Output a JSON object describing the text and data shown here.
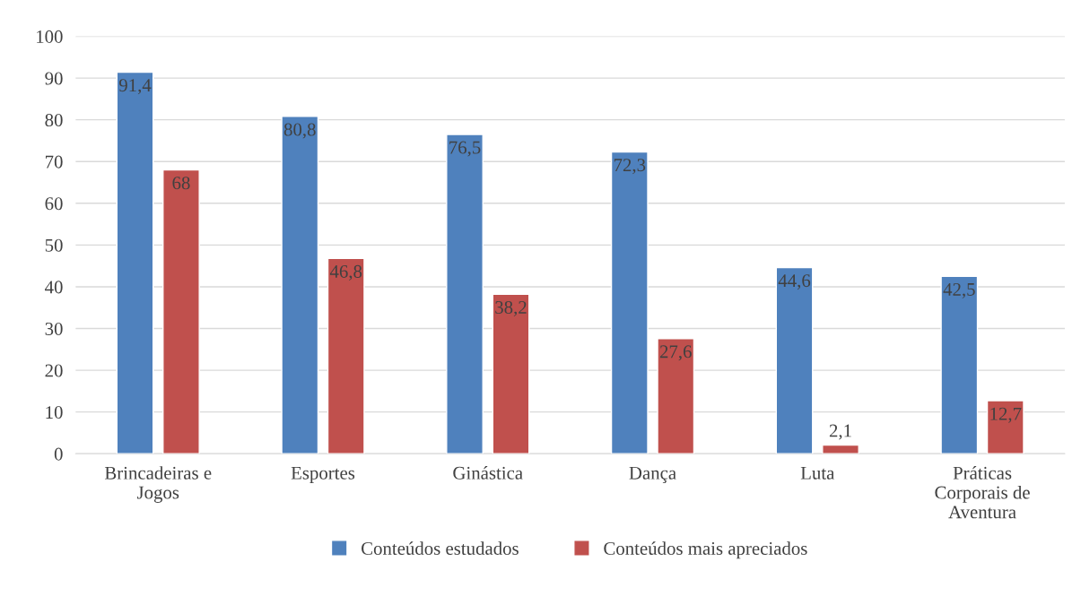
{
  "chart_data": {
    "type": "bar",
    "categories": [
      "Brincadeiras e Jogos",
      "Esportes",
      "Ginástica",
      "Dança",
      "Luta",
      "Práticas Corporais de Aventura"
    ],
    "series": [
      {
        "name": "Conteúdos estudados",
        "color": "#4f81bd",
        "values": [
          91.4,
          80.8,
          76.5,
          72.3,
          44.6,
          42.5
        ],
        "value_labels": [
          "91,4",
          "80,8",
          "76,5",
          "72,3",
          "44,6",
          "42,5"
        ]
      },
      {
        "name": "Conteúdos mais apreciados",
        "color": "#c0504d",
        "values": [
          68,
          46.8,
          38.2,
          27.6,
          2.1,
          12.7
        ],
        "value_labels": [
          "68",
          "46,8",
          "38,2",
          "27,6",
          "2,1",
          "12,7"
        ]
      }
    ],
    "ylim": [
      0,
      100
    ],
    "yticks": [
      0,
      10,
      20,
      30,
      40,
      50,
      60,
      70,
      80,
      90,
      100
    ],
    "grid": "y",
    "legend": "bottom"
  }
}
